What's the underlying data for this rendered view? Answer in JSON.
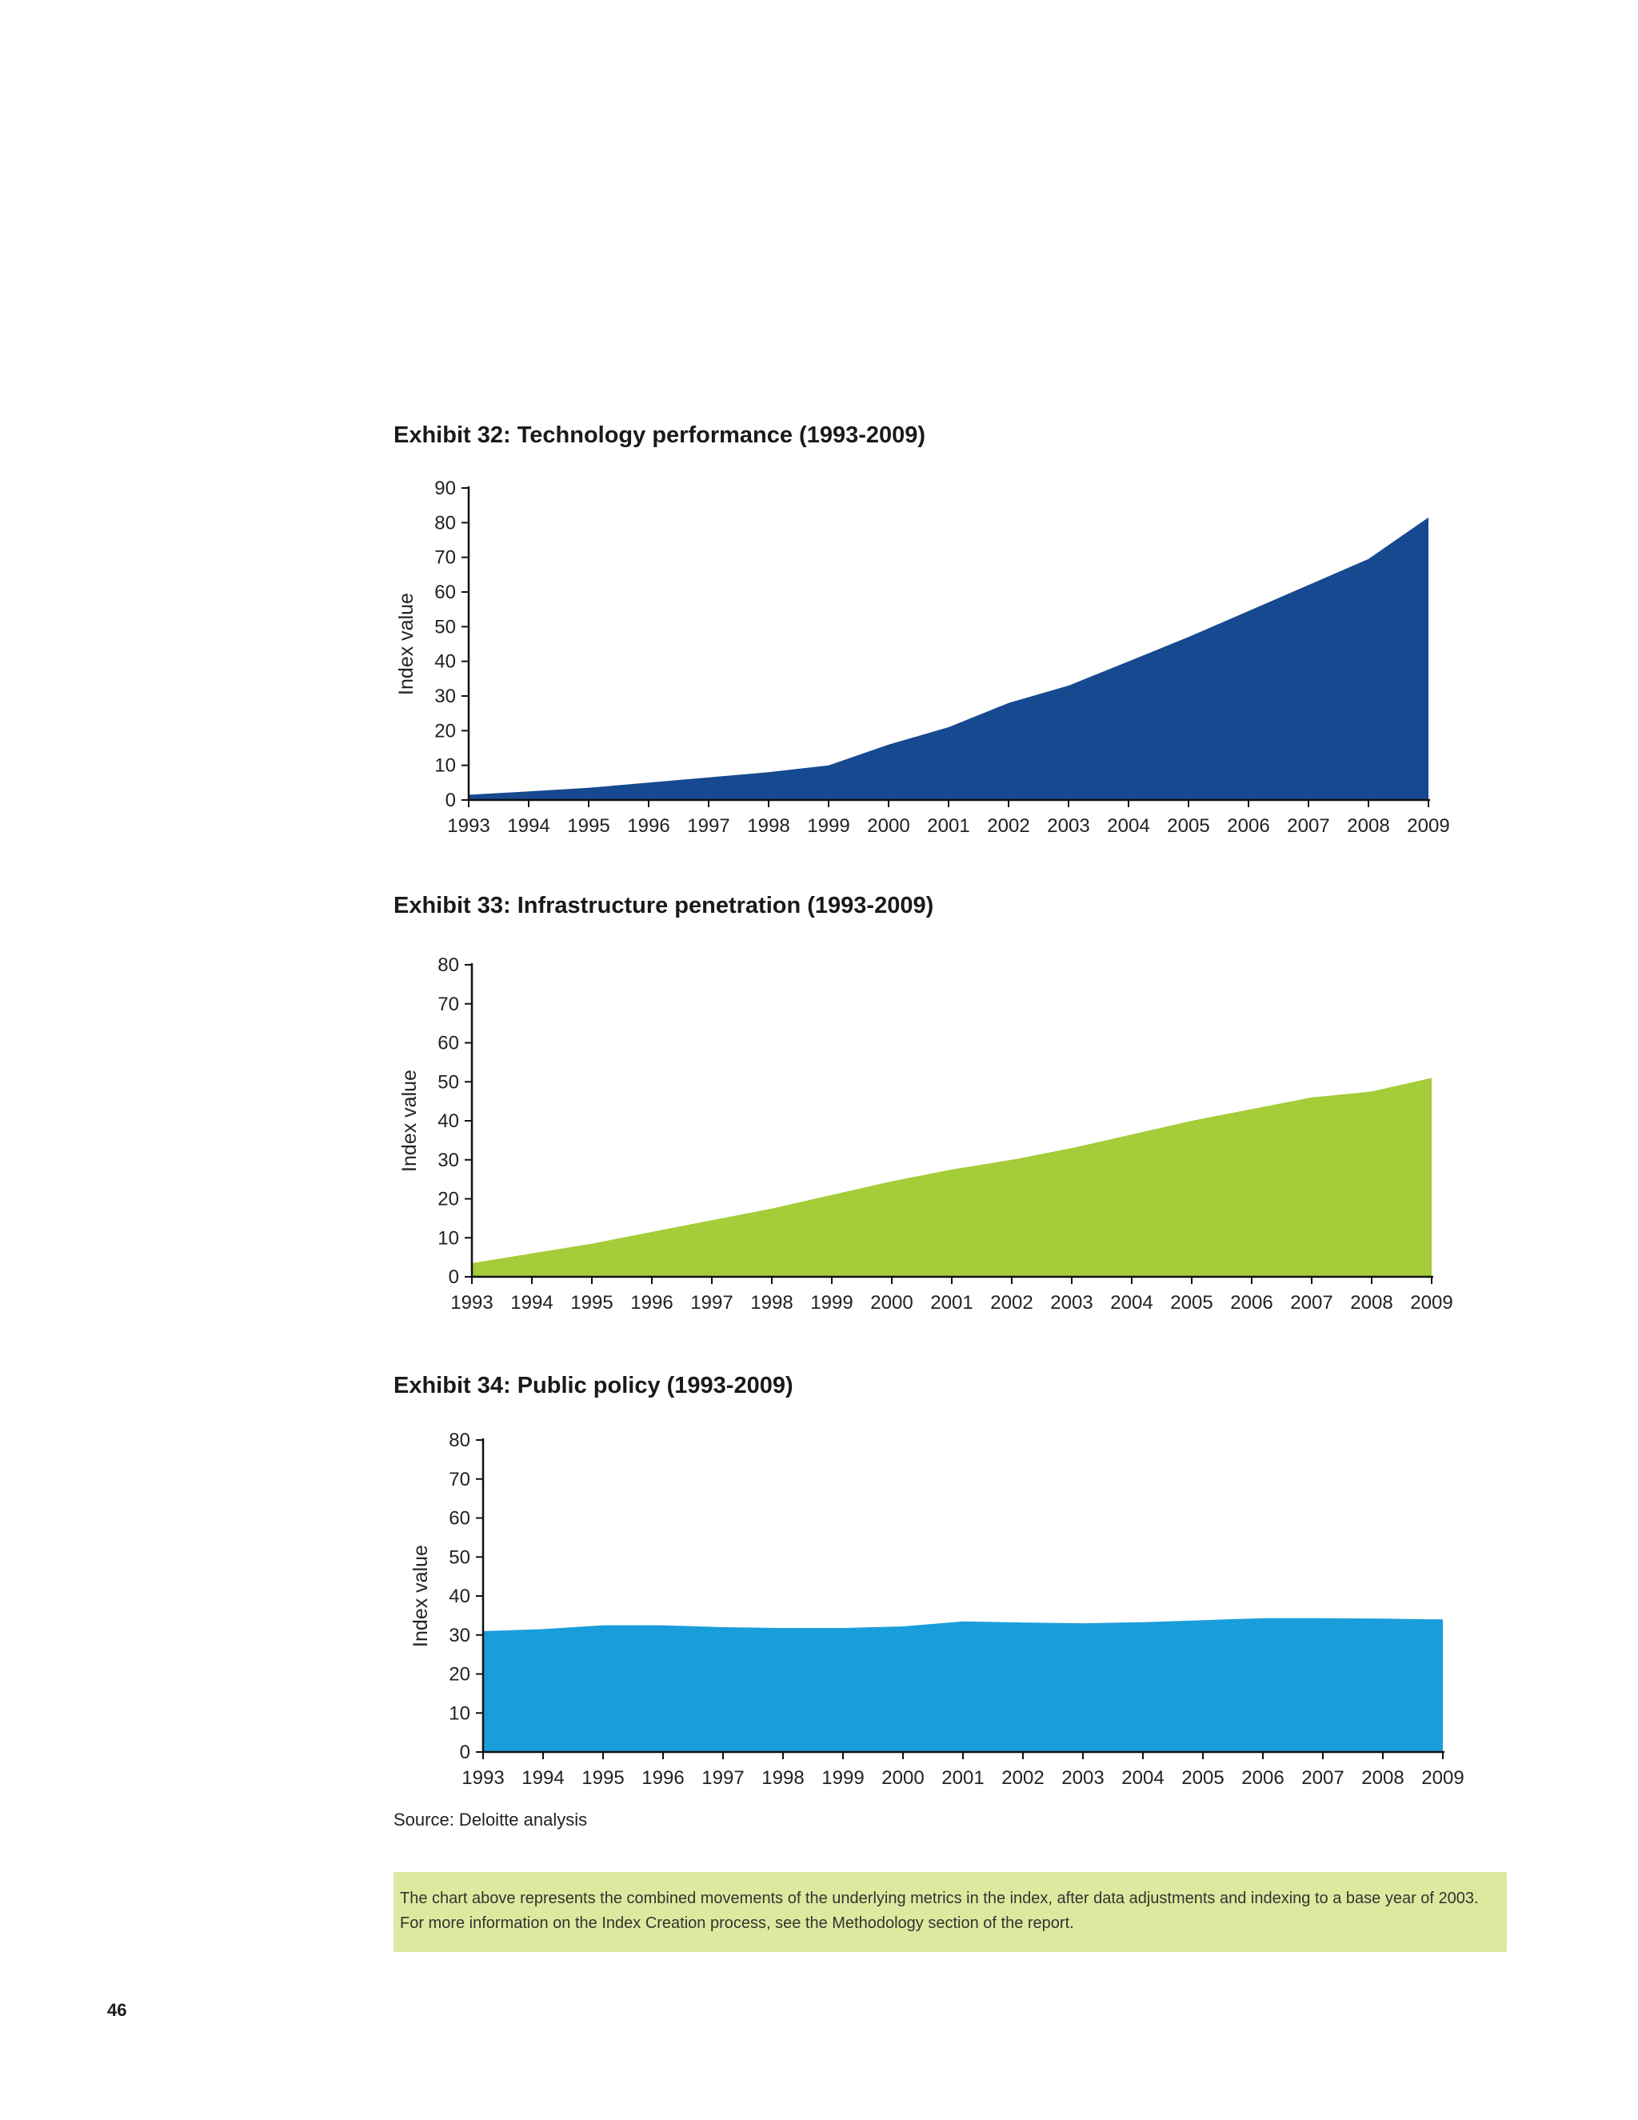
{
  "chart_data": [
    {
      "type": "area",
      "title": "Exhibit 32: Technology performance (1993-2009)",
      "ylabel": "Index value",
      "ylim": [
        0,
        90
      ],
      "yticks": [
        0,
        10,
        20,
        30,
        40,
        50,
        60,
        70,
        80,
        90
      ],
      "categories": [
        "1993",
        "1994",
        "1995",
        "1996",
        "1997",
        "1998",
        "1999",
        "2000",
        "2001",
        "2002",
        "2003",
        "2004",
        "2005",
        "2006",
        "2007",
        "2008",
        "2009"
      ],
      "values": [
        1.5,
        2.5,
        3.5,
        5,
        6.5,
        8,
        10,
        16,
        21,
        28,
        33,
        40,
        47,
        54.5,
        62,
        69.5,
        81.5
      ],
      "color": "#16498f",
      "grid": false
    },
    {
      "type": "area",
      "title": "Exhibit 33: Infrastructure penetration (1993-2009)",
      "ylabel": "Index value",
      "ylim": [
        0,
        80
      ],
      "yticks": [
        0,
        10,
        20,
        30,
        40,
        50,
        60,
        70,
        80
      ],
      "categories": [
        "1993",
        "1994",
        "1995",
        "1996",
        "1997",
        "1998",
        "1999",
        "2000",
        "2001",
        "2002",
        "2003",
        "2004",
        "2005",
        "2006",
        "2007",
        "2008",
        "2009"
      ],
      "values": [
        3.5,
        6,
        8.5,
        11.5,
        14.5,
        17.5,
        21,
        24.5,
        27.5,
        30,
        33,
        36.5,
        40,
        43,
        46,
        47.5,
        51
      ],
      "color": "#a4cd39",
      "grid": false
    },
    {
      "type": "area",
      "title": "Exhibit 34: Public policy (1993-2009)",
      "ylabel": "Index value",
      "ylim": [
        0,
        80
      ],
      "yticks": [
        0,
        10,
        20,
        30,
        40,
        50,
        60,
        70,
        80
      ],
      "categories": [
        "1993",
        "1994",
        "1995",
        "1996",
        "1997",
        "1998",
        "1999",
        "2000",
        "2001",
        "2002",
        "2003",
        "2004",
        "2005",
        "2006",
        "2007",
        "2008",
        "2009"
      ],
      "values": [
        31,
        31.5,
        32.5,
        32.5,
        32,
        31.8,
        31.8,
        32.2,
        33.5,
        33.2,
        33,
        33.3,
        33.8,
        34.3,
        34.3,
        34.2,
        34
      ],
      "color": "#1a9edb",
      "grid": false
    }
  ],
  "source": "Source: Deloitte analysis",
  "note": {
    "line1": "The chart above represents the combined movements of the underlying metrics in the index, after data adjustments and indexing to a base year of 2003.",
    "line2": "For more information on the Index Creation process, see the Methodology section of the report."
  },
  "page_number": "46"
}
